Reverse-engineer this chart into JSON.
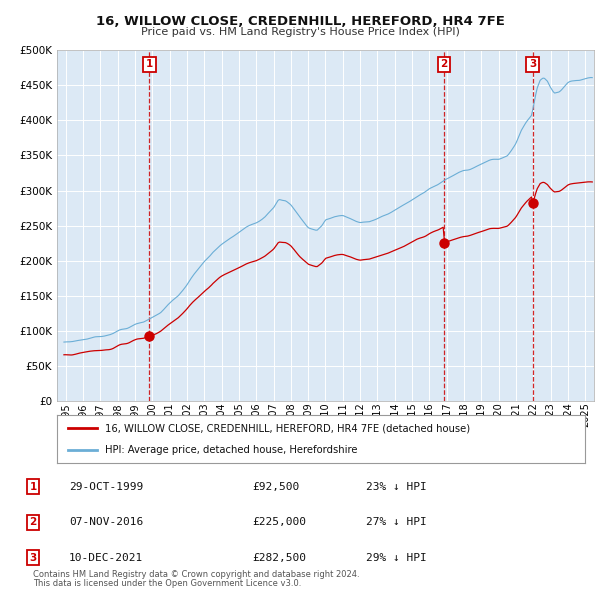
{
  "title_line1": "16, WILLOW CLOSE, CREDENHILL, HEREFORD, HR4 7FE",
  "title_line2": "Price paid vs. HM Land Registry's House Price Index (HPI)",
  "legend_label_red": "16, WILLOW CLOSE, CREDENHILL, HEREFORD, HR4 7FE (detached house)",
  "legend_label_blue": "HPI: Average price, detached house, Herefordshire",
  "footer_line1": "Contains HM Land Registry data © Crown copyright and database right 2024.",
  "footer_line2": "This data is licensed under the Open Government Licence v3.0.",
  "sale_points": [
    {
      "label": "1",
      "date": "29-OCT-1999",
      "price": 92500,
      "year_x": 1999.83
    },
    {
      "label": "2",
      "date": "07-NOV-2016",
      "price": 225000,
      "year_x": 2016.85
    },
    {
      "label": "3",
      "date": "10-DEC-2021",
      "price": 282500,
      "year_x": 2021.95
    }
  ],
  "sale_pct": [
    "23% ↓ HPI",
    "27% ↓ HPI",
    "29% ↓ HPI"
  ],
  "vline_color": "#cc0000",
  "dot_color": "#cc0000",
  "red_line_color": "#cc0000",
  "blue_line_color": "#6baed6",
  "background_color": "#dce9f5",
  "grid_color": "#ffffff",
  "ylim": [
    0,
    500000
  ],
  "xlim_start": 1994.5,
  "xlim_end": 2025.5,
  "xtick_years": [
    1995,
    1996,
    1997,
    1998,
    1999,
    2000,
    2001,
    2002,
    2003,
    2004,
    2005,
    2006,
    2007,
    2008,
    2009,
    2010,
    2011,
    2012,
    2013,
    2014,
    2015,
    2016,
    2017,
    2018,
    2019,
    2020,
    2021,
    2022,
    2023,
    2024,
    2025
  ],
  "hpi_waypoints": [
    [
      1994.9,
      83000
    ],
    [
      1995.5,
      86000
    ],
    [
      1996.0,
      88000
    ],
    [
      1996.5,
      90000
    ],
    [
      1997.0,
      93000
    ],
    [
      1997.5,
      96000
    ],
    [
      1998.0,
      100000
    ],
    [
      1998.5,
      104000
    ],
    [
      1999.0,
      108000
    ],
    [
      1999.5,
      113000
    ],
    [
      2000.0,
      120000
    ],
    [
      2000.5,
      128000
    ],
    [
      2001.0,
      138000
    ],
    [
      2001.5,
      150000
    ],
    [
      2002.0,
      165000
    ],
    [
      2002.5,
      182000
    ],
    [
      2003.0,
      198000
    ],
    [
      2003.5,
      212000
    ],
    [
      2004.0,
      222000
    ],
    [
      2004.5,
      232000
    ],
    [
      2005.0,
      240000
    ],
    [
      2005.5,
      248000
    ],
    [
      2006.0,
      256000
    ],
    [
      2006.5,
      265000
    ],
    [
      2007.0,
      278000
    ],
    [
      2007.3,
      290000
    ],
    [
      2007.7,
      285000
    ],
    [
      2008.0,
      278000
    ],
    [
      2008.5,
      262000
    ],
    [
      2009.0,
      248000
    ],
    [
      2009.5,
      243000
    ],
    [
      2009.8,
      250000
    ],
    [
      2010.0,
      258000
    ],
    [
      2010.5,
      263000
    ],
    [
      2011.0,
      265000
    ],
    [
      2011.5,
      260000
    ],
    [
      2012.0,
      255000
    ],
    [
      2012.5,
      256000
    ],
    [
      2013.0,
      260000
    ],
    [
      2013.5,
      265000
    ],
    [
      2014.0,
      272000
    ],
    [
      2014.5,
      278000
    ],
    [
      2015.0,
      287000
    ],
    [
      2015.5,
      295000
    ],
    [
      2016.0,
      303000
    ],
    [
      2016.5,
      308000
    ],
    [
      2017.0,
      316000
    ],
    [
      2017.5,
      322000
    ],
    [
      2018.0,
      330000
    ],
    [
      2018.5,
      334000
    ],
    [
      2019.0,
      338000
    ],
    [
      2019.5,
      342000
    ],
    [
      2020.0,
      344000
    ],
    [
      2020.5,
      350000
    ],
    [
      2021.0,
      368000
    ],
    [
      2021.3,
      385000
    ],
    [
      2021.6,
      398000
    ],
    [
      2021.9,
      408000
    ],
    [
      2022.0,
      420000
    ],
    [
      2022.2,
      445000
    ],
    [
      2022.4,
      458000
    ],
    [
      2022.6,
      462000
    ],
    [
      2022.8,
      458000
    ],
    [
      2023.0,
      448000
    ],
    [
      2023.2,
      440000
    ],
    [
      2023.5,
      442000
    ],
    [
      2023.8,
      448000
    ],
    [
      2024.0,
      452000
    ],
    [
      2024.5,
      458000
    ],
    [
      2025.0,
      460000
    ],
    [
      2025.3,
      462000
    ]
  ],
  "red_noise_seed": 15,
  "blue_noise_seed": 7
}
